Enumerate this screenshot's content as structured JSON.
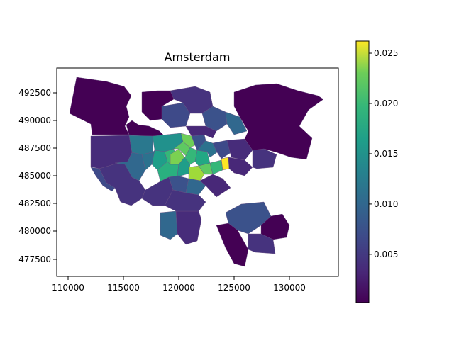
{
  "title": "Amsterdam",
  "axes": {
    "x_ticks": [
      "110000",
      "115000",
      "120000",
      "125000",
      "130000"
    ],
    "y_ticks": [
      "477500",
      "480000",
      "482500",
      "485000",
      "487500",
      "490000",
      "492500"
    ],
    "xlim": [
      109500,
      134200
    ],
    "ylim": [
      476000,
      494700
    ]
  },
  "colorbar": {
    "colormap": "viridis",
    "range": [
      0.0002,
      0.0262
    ],
    "tick_values": [
      0.005,
      0.01,
      0.015,
      0.02,
      0.025
    ],
    "tick_labels": [
      "0.005",
      "0.010",
      "0.015",
      "0.020",
      "0.025"
    ]
  },
  "colors": {
    "v_low": "#440154",
    "v_mid_low": "#3b528b",
    "v_mid": "#21918c",
    "v_mid_high": "#5ec962",
    "v_high": "#fde725"
  }
}
